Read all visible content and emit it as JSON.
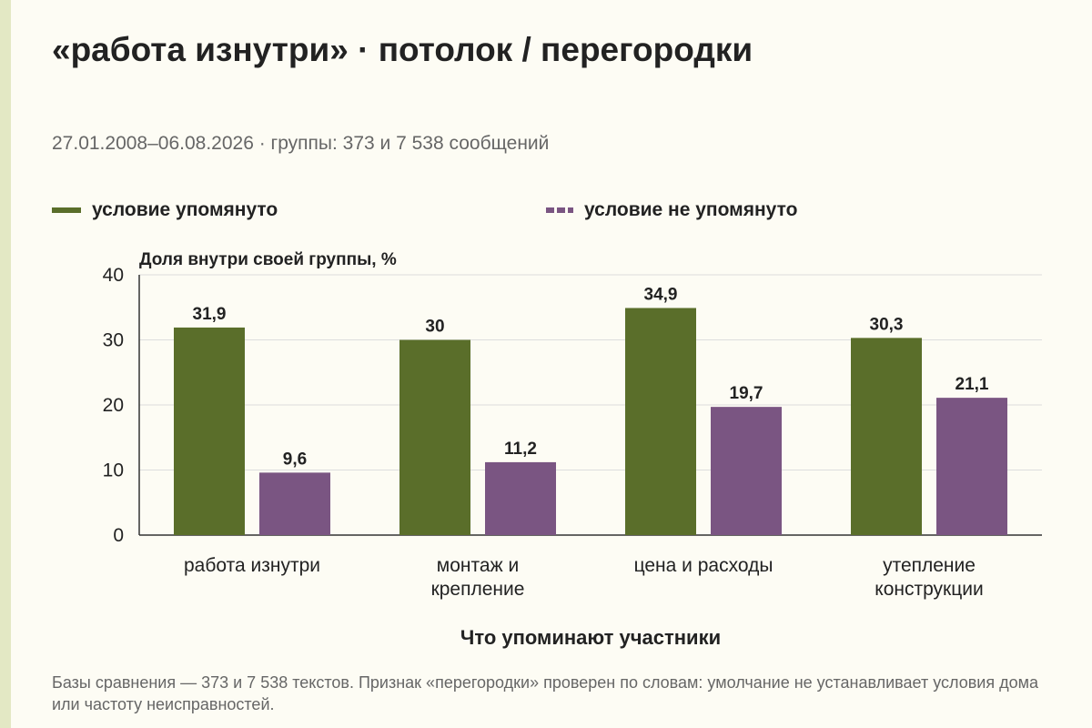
{
  "title": "«работа изнутри» · потолок / перегородки",
  "subtitle": "27.01.2008–06.08.2026 · группы: 373 и 7 538 сообщений",
  "footnote": "Базы сравнения — 373 и 7 538 текстов. Признак «перегородки» проверен по словам: умолчание не устанавливает условия дома или частоту неисправностей.",
  "colors": {
    "series1": "#5a6e2a",
    "series2": "#7a5582",
    "grid": "#dddddd",
    "axis": "#333333",
    "side_stripe": "#e3e8c4"
  },
  "chart_data": {
    "type": "bar",
    "title": "«работа изнутри» · потолок / перегородки",
    "xlabel": "Что упоминают участники",
    "ylabel": "Доля внутри своей группы, %",
    "ylim": [
      0,
      40
    ],
    "yticks": [
      0,
      10,
      20,
      30,
      40
    ],
    "grid": true,
    "legend_position": "top",
    "categories": [
      [
        "работа изнутри"
      ],
      [
        "монтаж и",
        "крепление"
      ],
      [
        "цена и расходы"
      ],
      [
        "утепление",
        "конструкции"
      ]
    ],
    "series": [
      {
        "name": "условие упомянуто",
        "values": [
          31.9,
          30,
          34.9,
          30.3
        ],
        "labels": [
          "31,9",
          "30",
          "34,9",
          "30,3"
        ]
      },
      {
        "name": "условие не упомянуто",
        "values": [
          9.6,
          11.2,
          19.7,
          21.1
        ],
        "labels": [
          "9,6",
          "11,2",
          "19,7",
          "21,1"
        ]
      }
    ]
  }
}
